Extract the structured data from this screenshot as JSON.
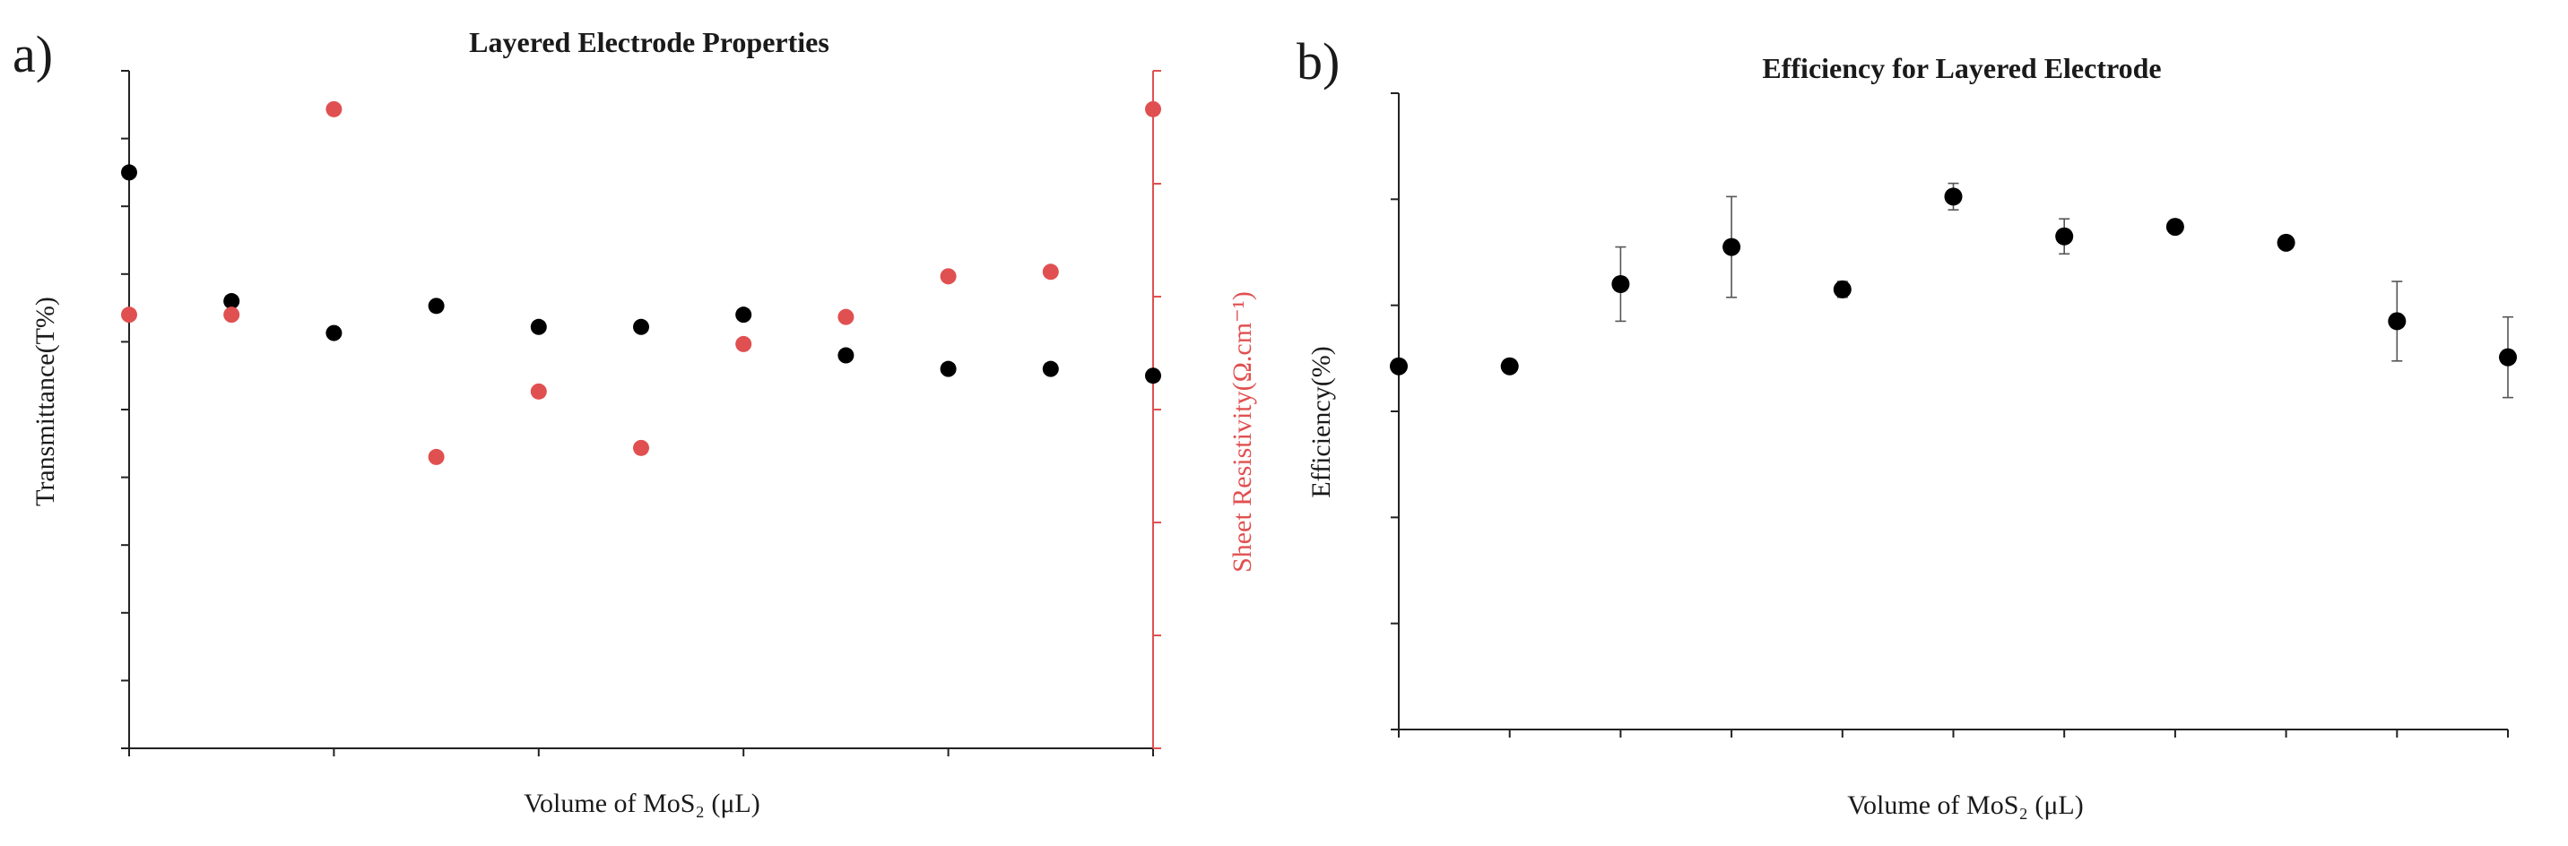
{
  "panels": [
    {
      "panel_label": "a)",
      "chart_data": {
        "type": "scatter",
        "title": "Layered Electrode Properties",
        "xlabel": "Volume of MoS₂ (μL)",
        "ylabel": "Transmittance(T%)",
        "y2label": "Sheet Resistivity(Ω.cm⁻¹)",
        "xlim": [
          0,
          1000
        ],
        "ylim": [
          0,
          100
        ],
        "y2lim": [
          0,
          300
        ],
        "xticks": [
          0,
          200,
          400,
          600,
          800,
          1000
        ],
        "yticks": [
          0,
          10,
          20,
          30,
          40,
          50,
          60,
          70,
          80,
          90,
          100
        ],
        "y2ticks": [
          0,
          50,
          100,
          150,
          200,
          250,
          300
        ],
        "grid": false,
        "x": [
          0,
          100,
          200,
          300,
          400,
          500,
          600,
          700,
          800,
          900,
          1000
        ],
        "series": [
          {
            "axis": "left",
            "color": "#000000",
            "values": [
              85,
              66,
              61.3,
              65.3,
              62.2,
              62.2,
              64,
              58,
              56,
              56,
              55
            ]
          },
          {
            "axis": "right",
            "color": "#e05050",
            "values": [
              192,
              192,
              283,
              129,
              158,
              133,
              179,
              191,
              209,
              211,
              283
            ]
          }
        ]
      }
    },
    {
      "panel_label": "b)",
      "chart_data": {
        "type": "scatter",
        "title": "Efficiency for Layered Electrode",
        "xlabel": "Volume of MoS₂ (μL)",
        "ylabel": "Efficiency(%)",
        "xlim": [
          0,
          1000
        ],
        "ylim": [
          0,
          12
        ],
        "xticks": [
          0,
          100,
          200,
          300,
          400,
          500,
          600,
          700,
          800,
          900,
          1000
        ],
        "yticks": [
          0,
          2,
          4,
          6,
          8,
          10,
          12
        ],
        "grid": false,
        "x": [
          0,
          100,
          200,
          300,
          400,
          500,
          600,
          700,
          800,
          900,
          1000
        ],
        "series": [
          {
            "color": "#000000",
            "values": [
              6.85,
              6.85,
              8.4,
              9.1,
              8.3,
              10.05,
              9.3,
              9.48,
              9.18,
              7.7,
              7.02
            ],
            "error": [
              0,
              0,
              0.7,
              0.95,
              0.15,
              0.25,
              0.33,
              0,
              0.1,
              0.75,
              0.76
            ]
          }
        ]
      }
    }
  ]
}
